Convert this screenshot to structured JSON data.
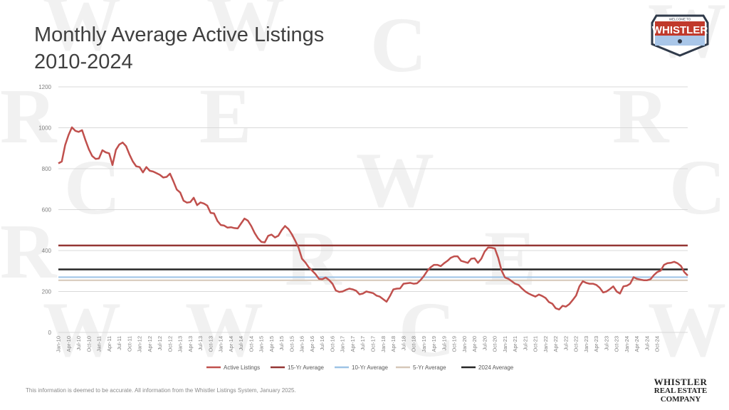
{
  "title_line1": "Monthly Average Active Listings",
  "title_line2": "2010-2024",
  "footnote": "This information is deemed to be accurate. All information from the Whistler Listings System, January 2025.",
  "logo_whistler": {
    "top_text": "WELCOME TO",
    "main_text": "WHISTLER"
  },
  "logo_company": {
    "line1": "WHISTLER",
    "line2": "REAL ESTATE",
    "line3": "COMPANY"
  },
  "colors": {
    "active": "#c0504d",
    "avg15": "#943634",
    "avg10": "#9dc3e6",
    "avg5": "#d6c7b8",
    "avg2024": "#262626",
    "grid": "#d9d9d9",
    "axis_text": "#7f7f7f"
  },
  "chart_data": {
    "type": "line",
    "ylim": [
      0,
      1200
    ],
    "yticks": [
      0,
      200,
      400,
      600,
      800,
      1000,
      1200
    ],
    "grid": true,
    "legend_position": "bottom",
    "x_tick_labels": [
      "Jan-10",
      "Apr-10",
      "Jul-10",
      "Oct-10",
      "Jan-11",
      "Apr-11",
      "Jul-11",
      "Oct-11",
      "Jan-12",
      "Apr-12",
      "Jul-12",
      "Oct-12",
      "Jan-13",
      "Apr-13",
      "Jul-13",
      "Oct-13",
      "Jan-14",
      "Apr-14",
      "Jul-14",
      "Oct-14",
      "Jan-15",
      "Apr-15",
      "Jul-15",
      "Oct-15",
      "Jan-16",
      "Apr-16",
      "Jul-16",
      "Oct-16",
      "Jan-17",
      "Apr-17",
      "Jul-17",
      "Oct-17",
      "Jan-18",
      "Apr-18",
      "Jul-18",
      "Oct-18",
      "Jan-19",
      "Apr-19",
      "Jul-19",
      "Oct-19",
      "Jan-20",
      "Apr-20",
      "Jul-20",
      "Oct-20",
      "Jan-21",
      "Apr-21",
      "Jul-21",
      "Oct-21",
      "Jan-22",
      "Apr-22",
      "Jul-22",
      "Oct-22",
      "Jan-23",
      "Apr-23",
      "Jul-23",
      "Oct-23",
      "Jan-24",
      "Apr-24",
      "Jul-24",
      "Oct-24"
    ],
    "series": [
      {
        "name": "Active Listings",
        "key": "active",
        "values": [
          826,
          835,
          915,
          965,
          1002,
          985,
          980,
          988,
          940,
          895,
          862,
          848,
          850,
          890,
          880,
          875,
          818,
          892,
          918,
          928,
          910,
          870,
          835,
          812,
          808,
          782,
          808,
          790,
          786,
          778,
          770,
          757,
          760,
          776,
          738,
          698,
          684,
          644,
          634,
          637,
          658,
          622,
          635,
          630,
          620,
          584,
          582,
          545,
          525,
          522,
          512,
          514,
          510,
          508,
          532,
          556,
          546,
          520,
          486,
          460,
          442,
          440,
          472,
          478,
          464,
          472,
          500,
          520,
          505,
          480,
          448,
          414,
          360,
          342,
          318,
          302,
          285,
          262,
          260,
          268,
          256,
          238,
          205,
          198,
          200,
          208,
          214,
          210,
          204,
          186,
          190,
          200,
          196,
          192,
          180,
          175,
          162,
          150,
          178,
          210,
          214,
          215,
          238,
          240,
          242,
          238,
          240,
          255,
          275,
          300,
          318,
          330,
          330,
          324,
          338,
          350,
          365,
          372,
          372,
          350,
          345,
          340,
          360,
          362,
          340,
          360,
          395,
          415,
          414,
          410,
          365,
          302,
          268,
          262,
          250,
          238,
          232,
          215,
          200,
          190,
          182,
          175,
          185,
          178,
          168,
          148,
          140,
          118,
          112,
          130,
          126,
          138,
          158,
          180,
          225,
          250,
          242,
          238,
          238,
          232,
          218,
          195,
          200,
          212,
          225,
          200,
          190,
          225,
          228,
          238,
          270,
          262,
          258,
          255,
          255,
          260,
          280,
          295,
          302,
          330,
          338,
          340,
          345,
          338,
          325,
          295,
          278
        ]
      },
      {
        "name": "15-Yr Average",
        "key": "avg15",
        "values": [
          425
        ]
      },
      {
        "name": "10-Yr Average",
        "key": "avg10",
        "values": [
          270
        ]
      },
      {
        "name": "5-Yr Average",
        "key": "avg5",
        "values": [
          255
        ]
      },
      {
        "name": "2024 Average",
        "key": "avg2024",
        "values": [
          308
        ]
      }
    ]
  }
}
